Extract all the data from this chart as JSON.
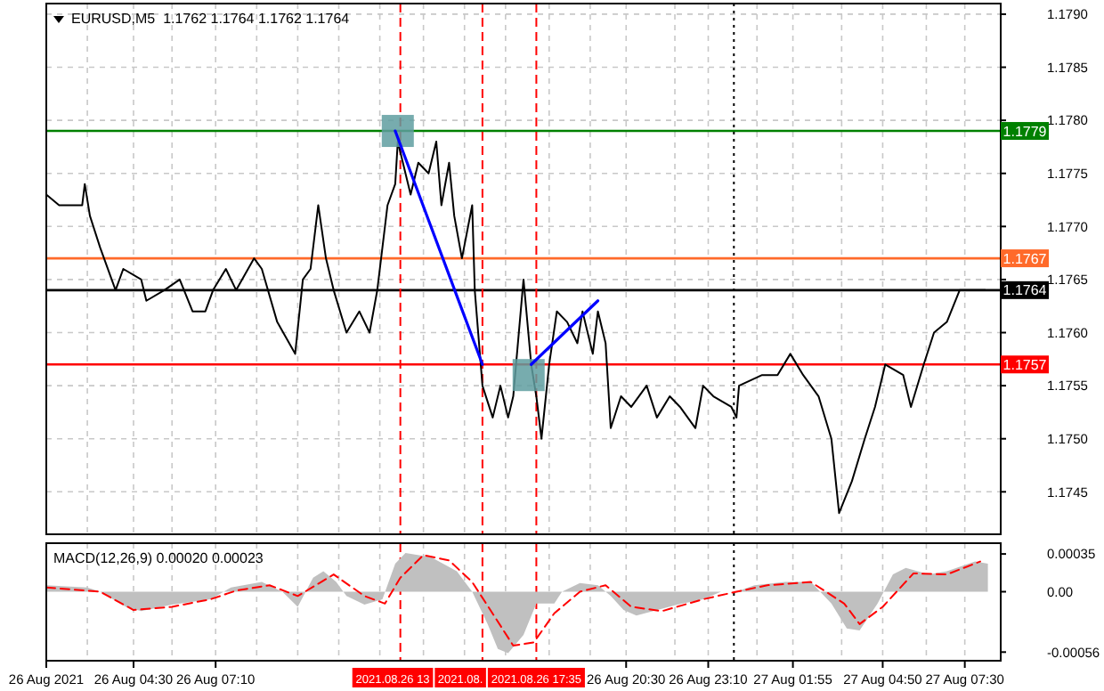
{
  "chart_data": [
    {
      "type": "line",
      "title": "EURUSD,M5  1.1762 1.1764 1.1762 1.1764",
      "xlim": [
        "2021-08-26T01:40",
        "2021-08-27T08:40"
      ],
      "xticks": [
        "2021-08-26T01:40",
        "2021-08-26T03:00",
        "2021-08-26T04:30",
        "2021-08-26T05:45",
        "2021-08-26T07:10",
        "2021-08-26T08:30",
        "2021-08-26T09:50",
        "2021-08-26T11:10",
        "2021-08-26T12:30",
        "2021-08-26T13:55",
        "2021-08-26T15:15",
        "2021-08-26T16:35",
        "2021-08-26T18:00",
        "2021-08-26T19:20",
        "2021-08-26T20:30",
        "2021-08-26T22:05",
        "2021-08-26T23:10",
        "2021-08-27T00:45",
        "2021-08-27T01:55",
        "2021-08-27T03:30",
        "2021-08-27T04:50",
        "2021-08-27T06:15",
        "2021-08-27T07:30"
      ],
      "ylim": [
        1.1741,
        1.1791
      ],
      "yticks": [
        {
          "value": 1.179,
          "label": "1.1790"
        },
        1.1785,
        {
          "value": 1.178,
          "label": "1.1780"
        },
        1.1775,
        {
          "value": 1.177,
          "label": "1.1770"
        },
        1.1765,
        {
          "value": 1.176,
          "label": "1.1760"
        },
        1.1755,
        {
          "value": 1.175,
          "label": "1.1750"
        },
        1.1745
      ],
      "tick_labels": "y",
      "grid": true,
      "series": [
        {
          "color": "#000000",
          "x": [
            "2021-08-26T01:40",
            "2021-08-26T02:05",
            "2021-08-26T02:50",
            "2021-08-26T02:55",
            "2021-08-26T03:05",
            "2021-08-26T03:25",
            "2021-08-26T03:55",
            "2021-08-26T04:10",
            "2021-08-26T04:45",
            "2021-08-26T04:55",
            "2021-08-26T05:30",
            "2021-08-26T06:00",
            "2021-08-26T06:25",
            "2021-08-26T06:50",
            "2021-08-26T07:05",
            "2021-08-26T07:30",
            "2021-08-26T07:50",
            "2021-08-26T08:25",
            "2021-08-26T08:40",
            "2021-08-26T09:10",
            "2021-08-26T09:45",
            "2021-08-26T10:00",
            "2021-08-26T10:15",
            "2021-08-26T10:30",
            "2021-08-26T10:45",
            "2021-08-26T11:00",
            "2021-08-26T11:25",
            "2021-08-26T11:50",
            "2021-08-26T12:10",
            "2021-08-26T12:25",
            "2021-08-26T12:45",
            "2021-08-26T13:00",
            "2021-08-26T13:05",
            "2021-08-26T13:20",
            "2021-08-26T13:30",
            "2021-08-26T13:45",
            "2021-08-26T14:05",
            "2021-08-26T14:20",
            "2021-08-26T14:30",
            "2021-08-26T14:45",
            "2021-08-26T14:55",
            "2021-08-26T15:10",
            "2021-08-26T15:30",
            "2021-08-26T15:35",
            "2021-08-26T15:45",
            "2021-08-26T15:50",
            "2021-08-26T16:10",
            "2021-08-26T16:25",
            "2021-08-26T16:40",
            "2021-08-26T16:50",
            "2021-08-26T17:10",
            "2021-08-26T17:25",
            "2021-08-26T17:35",
            "2021-08-26T17:45",
            "2021-08-26T18:00",
            "2021-08-26T18:15",
            "2021-08-26T18:35",
            "2021-08-26T18:55",
            "2021-08-26T19:05",
            "2021-08-26T19:25",
            "2021-08-26T19:35",
            "2021-08-26T19:50",
            "2021-08-26T20:00",
            "2021-08-26T20:20",
            "2021-08-26T20:40",
            "2021-08-26T21:10",
            "2021-08-26T21:30",
            "2021-08-26T21:55",
            "2021-08-26T22:15",
            "2021-08-26T22:45",
            "2021-08-26T23:00",
            "2021-08-26T23:20",
            "2021-08-26T23:55",
            "2021-08-27T00:05",
            "2021-08-27T00:10",
            "2021-08-27T00:55",
            "2021-08-27T01:25",
            "2021-08-27T01:50",
            "2021-08-27T02:15",
            "2021-08-27T02:45",
            "2021-08-27T03:10",
            "2021-08-27T03:25",
            "2021-08-27T03:50",
            "2021-08-27T04:15",
            "2021-08-27T04:35",
            "2021-08-27T04:55",
            "2021-08-27T05:30",
            "2021-08-27T05:45",
            "2021-08-27T06:10",
            "2021-08-27T06:30",
            "2021-08-27T06:55",
            "2021-08-27T07:20",
            "2021-08-27T07:45",
            "2021-08-27T08:10"
          ],
          "values": [
            1.1773,
            1.1772,
            1.1772,
            1.1774,
            1.1771,
            1.1768,
            1.1764,
            1.1766,
            1.1765,
            1.1763,
            1.1764,
            1.1765,
            1.1762,
            1.1762,
            1.1764,
            1.1766,
            1.1764,
            1.1767,
            1.1766,
            1.1761,
            1.1758,
            1.1765,
            1.1766,
            1.1772,
            1.1767,
            1.1764,
            1.176,
            1.1762,
            1.176,
            1.1764,
            1.1772,
            1.1774,
            1.1778,
            1.1775,
            1.1773,
            1.1776,
            1.1775,
            1.1778,
            1.1772,
            1.1776,
            1.1771,
            1.1767,
            1.1772,
            1.1764,
            1.1758,
            1.1755,
            1.1752,
            1.1755,
            1.1752,
            1.1754,
            1.1765,
            1.1757,
            1.1754,
            1.175,
            1.1757,
            1.1762,
            1.1761,
            1.1759,
            1.1762,
            1.1758,
            1.1762,
            1.1759,
            1.1751,
            1.1754,
            1.1753,
            1.1755,
            1.1752,
            1.1754,
            1.1753,
            1.1751,
            1.1755,
            1.1754,
            1.1753,
            1.1752,
            1.1755,
            1.1756,
            1.1756,
            1.1758,
            1.1756,
            1.1754,
            1.175,
            1.1743,
            1.1746,
            1.175,
            1.1753,
            1.1757,
            1.1756,
            1.1753,
            1.1757,
            1.176,
            1.1761,
            1.1764,
            1.1764,
            1.1764
          ]
        },
        {
          "type": "scatter",
          "marker": "square",
          "color": "#5f9ea0",
          "x": [
            "2021-08-26T13:05",
            "2021-08-26T17:20"
          ],
          "values": [
            1.1779,
            1.1756
          ]
        },
        {
          "type": "line",
          "color": "#0000ff",
          "x": [
            "2021-08-26T13:00",
            "2021-08-26T15:50",
            "2021-08-26T16:30",
            "2021-08-26T17:25",
            "2021-08-26T19:35"
          ],
          "values": [
            1.1779,
            1.1757,
            null,
            1.1757,
            1.1763
          ]
        }
      ],
      "ref_lines": [
        {
          "axis": "y",
          "value": 1.1779,
          "label": "1.1779",
          "color": "#008000"
        },
        {
          "axis": "y",
          "value": 1.1767,
          "label": "1.1767",
          "color": "#ff6a2a"
        },
        {
          "axis": "y",
          "value": 1.1764,
          "label": "1.1764",
          "color": "#000000"
        },
        {
          "axis": "y",
          "value": 1.1757,
          "label": "1.1757",
          "color": "#ff0000"
        },
        {
          "axis": "x",
          "value": "2021-08-26T13:10",
          "color": "#ff0000",
          "line_style": "dashed"
        },
        {
          "axis": "x",
          "value": "2021-08-26T15:50",
          "color": "#ff0000",
          "line_style": "dashed"
        },
        {
          "axis": "x",
          "value": "2021-08-26T17:35",
          "color": "#ff0000",
          "line_style": "dashed"
        },
        {
          "axis": "x",
          "value": "2021-08-27T00:00",
          "color": "#000000",
          "line_style": "dotted"
        }
      ]
    },
    {
      "type": "area",
      "title": "MACD(12,26,9) 0.00020 0.00023",
      "xlim": [
        "2021-08-26T01:40",
        "2021-08-27T08:40"
      ],
      "xticks": [
        {
          "value": "2021-08-26T01:40",
          "label": "26 Aug 2021"
        },
        {
          "value": "2021-08-26T03:00",
          "label": null
        },
        {
          "value": "2021-08-26T04:30",
          "label": "26 Aug 04:30"
        },
        {
          "value": "2021-08-26T05:45",
          "label": null
        },
        {
          "value": "2021-08-26T07:10",
          "label": "26 Aug 07:10"
        },
        {
          "value": "2021-08-26T08:30",
          "label": null
        },
        {
          "value": "2021-08-26T09:50",
          "label": null
        },
        {
          "value": "2021-08-26T11:10",
          "label": null
        },
        {
          "value": "2021-08-26T12:30",
          "label": null
        },
        {
          "value": "2021-08-26T13:55",
          "label": null
        },
        {
          "value": "2021-08-26T15:15",
          "label": null
        },
        {
          "value": "2021-08-26T16:35",
          "label": null
        },
        {
          "value": "2021-08-26T18:00",
          "label": null
        },
        {
          "value": "2021-08-26T19:20",
          "label": null
        },
        {
          "value": "2021-08-26T20:30",
          "label": "26 Aug 20:30"
        },
        {
          "value": "2021-08-26T22:05",
          "label": null
        },
        {
          "value": "2021-08-26T23:10",
          "label": "26 Aug 23:10"
        },
        {
          "value": "2021-08-27T00:45",
          "label": null
        },
        {
          "value": "2021-08-27T01:55",
          "label": "27 Aug 01:55"
        },
        {
          "value": "2021-08-27T03:30",
          "label": null
        },
        {
          "value": "2021-08-27T04:50",
          "label": "27 Aug 04:50"
        },
        {
          "value": "2021-08-27T06:15",
          "label": null
        },
        {
          "value": "2021-08-27T07:30",
          "label": "27 Aug 07:30"
        }
      ],
      "ylim": [
        -0.00064,
        0.00045
      ],
      "yticks": [
        0.00035,
        {
          "value": 0,
          "label": "0.00"
        },
        -0.00056
      ],
      "grid": "x",
      "series": [
        {
          "color": "#c0c0c0",
          "x": [
            "2021-08-26T01:40",
            "2021-08-26T03:00",
            "2021-08-26T03:25",
            "2021-08-26T04:15",
            "2021-08-26T04:45",
            "2021-08-26T05:45",
            "2021-08-26T07:00",
            "2021-08-26T07:40",
            "2021-08-26T08:40",
            "2021-08-26T09:20",
            "2021-08-26T09:50",
            "2021-08-26T10:20",
            "2021-08-26T10:40",
            "2021-08-26T11:05",
            "2021-08-26T11:25",
            "2021-08-26T12:00",
            "2021-08-26T12:35",
            "2021-08-26T13:00",
            "2021-08-26T13:20",
            "2021-08-26T14:10",
            "2021-08-26T15:00",
            "2021-08-26T15:30",
            "2021-08-26T16:00",
            "2021-08-26T16:20",
            "2021-08-26T16:40",
            "2021-08-26T17:10",
            "2021-08-26T17:35",
            "2021-08-26T18:10",
            "2021-08-26T18:25",
            "2021-08-26T19:00",
            "2021-08-26T19:35",
            "2021-08-26T20:00",
            "2021-08-26T20:25",
            "2021-08-26T20:50",
            "2021-08-26T22:10",
            "2021-08-26T23:00",
            "2021-08-26T23:35",
            "2021-08-27T00:05",
            "2021-08-27T00:40",
            "2021-08-27T01:40",
            "2021-08-27T02:30",
            "2021-08-27T03:10",
            "2021-08-27T03:40",
            "2021-08-27T04:05",
            "2021-08-27T04:40",
            "2021-08-27T05:10",
            "2021-08-27T05:35",
            "2021-08-27T06:20",
            "2021-08-27T06:55",
            "2021-08-27T07:50",
            "2021-08-27T08:15"
          ],
          "values": [
            6e-05,
            4e-05,
            0,
            -0.00014,
            -0.00018,
            -0.00012,
            -7e-05,
            4e-05,
            9e-05,
            0,
            -0.00014,
            0.00013,
            0.00019,
            9e-05,
            -4e-05,
            -0.00012,
            -7e-05,
            0.00026,
            0.00036,
            0.00032,
            0.00019,
            0,
            -0.0003,
            -0.00053,
            -0.00057,
            -0.0004,
            -0.00011,
            -0.00011,
            0,
            8e-05,
            6e-05,
            -4e-05,
            -0.00017,
            -0.00022,
            -0.00012,
            -7e-05,
            0,
            0,
            6e-05,
            9e-05,
            9e-05,
            -0.00011,
            -0.00034,
            -0.00036,
            -0.00011,
            0.00016,
            0.00022,
            0.00016,
            0.00019,
            0.00028,
            0.00026
          ]
        },
        {
          "type": "line",
          "color": "#ff0000",
          "line_style": "dashed",
          "x": [
            "2021-08-26T01:40",
            "2021-08-26T03:25",
            "2021-08-26T04:30",
            "2021-08-26T05:45",
            "2021-08-26T07:00",
            "2021-08-26T07:50",
            "2021-08-26T08:55",
            "2021-08-26T09:50",
            "2021-08-26T11:00",
            "2021-08-26T12:00",
            "2021-08-26T12:40",
            "2021-08-26T13:10",
            "2021-08-26T13:55",
            "2021-08-26T14:45",
            "2021-08-26T15:30",
            "2021-08-26T16:15",
            "2021-08-26T16:50",
            "2021-08-26T17:30",
            "2021-08-26T18:10",
            "2021-08-26T19:00",
            "2021-08-26T19:50",
            "2021-08-26T20:40",
            "2021-08-26T21:40",
            "2021-08-26T23:00",
            "2021-08-27T00:05",
            "2021-08-27T01:05",
            "2021-08-27T02:30",
            "2021-08-27T03:35",
            "2021-08-27T04:05",
            "2021-08-27T04:50",
            "2021-08-27T05:50",
            "2021-08-27T06:55",
            "2021-08-27T08:00"
          ],
          "values": [
            4e-05,
            0,
            -0.00017,
            -0.00014,
            -7e-05,
            1e-05,
            6e-05,
            -4e-05,
            0.00016,
            -4e-05,
            -0.00011,
            0.00013,
            0.00034,
            0.00029,
            9e-05,
            -0.00024,
            -0.0005,
            -0.00047,
            -0.0002,
            0,
            6e-05,
            -0.00014,
            -0.00018,
            -7e-05,
            0,
            6e-05,
            9e-05,
            -0.00011,
            -0.0003,
            -0.00014,
            0.00017,
            0.00016,
            0.00028
          ]
        }
      ],
      "ref_lines": [
        {
          "axis": "x",
          "value": "2021-08-26T13:10",
          "label": "2021.08.26 13",
          "color": "#ff0000",
          "line_style": "dashed"
        },
        {
          "axis": "x",
          "value": "2021-08-26T15:50",
          "label": "2021.08.",
          "color": "#ff0000",
          "line_style": "dashed"
        },
        {
          "axis": "x",
          "value": "2021-08-26T17:35",
          "label": "2021.08.26 17:35",
          "color": "#ff0000",
          "line_style": "dashed"
        },
        {
          "axis": "x",
          "value": "2021-08-27T00:00",
          "color": "#000000",
          "line_style": "dotted"
        }
      ]
    }
  ]
}
